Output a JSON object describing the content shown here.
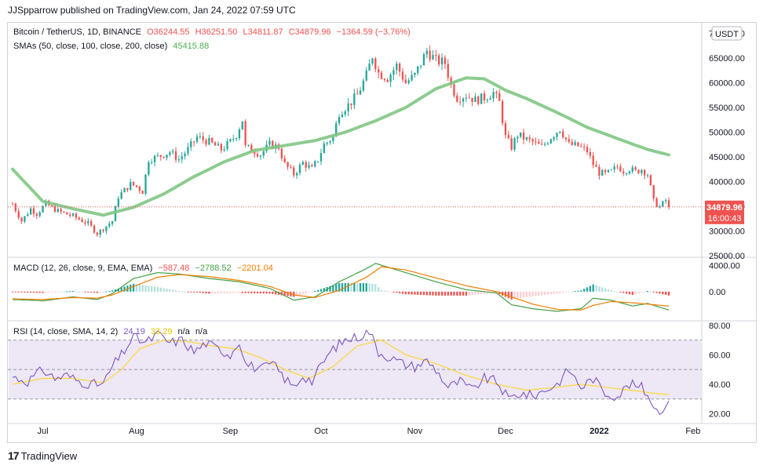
{
  "header": {
    "publish_info": "JJSpparrow published on TradingView.com, Jan 24, 2022 07:59 UTC"
  },
  "branding": {
    "logo_text": "TradingView",
    "logo_mark": "17"
  },
  "chart_data": [
    {
      "type": "candlestick",
      "title": "Bitcoin / TetherUS, 1D, BINANCE",
      "currency": "USDT",
      "ohlc_label": {
        "o": "O36244.55",
        "h": "H36251.50",
        "l": "L34811.87",
        "c": "C34879.96",
        "chg": "−1364.59 (−3.76%)"
      },
      "last_price_label": "34879.96",
      "countdown_label": "16:00:43",
      "ylim": [
        25000,
        72000
      ],
      "yticks": [
        25000,
        30000,
        35000,
        40000,
        45000,
        50000,
        55000,
        60000,
        65000,
        70000
      ],
      "ytick_labels": [
        "25000.00",
        "30000.00",
        "35000.00",
        "40000.00",
        "45000.00",
        "50000.00",
        "55000.00",
        "60000.00",
        "65000.00",
        "70000.00"
      ],
      "x_labels": [
        {
          "label": "Jul",
          "day": 10
        },
        {
          "label": "Aug",
          "day": 41
        },
        {
          "label": "Sep",
          "day": 72
        },
        {
          "label": "Oct",
          "day": 102
        },
        {
          "label": "Nov",
          "day": 133
        },
        {
          "label": "Dec",
          "day": 163
        },
        {
          "label": "2022",
          "day": 194
        },
        {
          "label": "Feb",
          "day": 225
        }
      ],
      "first_day": "2021-06-21",
      "last_day_index": 217,
      "anchors": [
        [
          0,
          35500
        ],
        [
          3,
          32000
        ],
        [
          6,
          34500
        ],
        [
          8,
          33500
        ],
        [
          11,
          35500
        ],
        [
          15,
          34000
        ],
        [
          20,
          33000
        ],
        [
          25,
          31500
        ],
        [
          28,
          29500
        ],
        [
          33,
          32000
        ],
        [
          35,
          37000
        ],
        [
          39,
          39500
        ],
        [
          41,
          39000
        ],
        [
          43,
          38000
        ],
        [
          45,
          44500
        ],
        [
          48,
          45000
        ],
        [
          52,
          46000
        ],
        [
          55,
          44500
        ],
        [
          58,
          46500
        ],
        [
          61,
          49000
        ],
        [
          65,
          48000
        ],
        [
          69,
          46500
        ],
        [
          72,
          48000
        ],
        [
          74,
          49500
        ],
        [
          76,
          52500
        ],
        [
          77,
          47000
        ],
        [
          79,
          46500
        ],
        [
          82,
          45500
        ],
        [
          85,
          47500
        ],
        [
          88,
          47000
        ],
        [
          90,
          43500
        ],
        [
          93,
          41500
        ],
        [
          96,
          43800
        ],
        [
          99,
          42500
        ],
        [
          101,
          44500
        ],
        [
          103,
          47500
        ],
        [
          106,
          49000
        ],
        [
          108,
          54000
        ],
        [
          111,
          55500
        ],
        [
          114,
          57500
        ],
        [
          117,
          61500
        ],
        [
          119,
          65500
        ],
        [
          121,
          62000
        ],
        [
          124,
          61000
        ],
        [
          127,
          63500
        ],
        [
          130,
          60000
        ],
        [
          133,
          61500
        ],
        [
          135,
          64000
        ],
        [
          137,
          66500
        ],
        [
          140,
          64500
        ],
        [
          143,
          64000
        ],
        [
          145,
          59500
        ],
        [
          147,
          57000
        ],
        [
          150,
          57500
        ],
        [
          153,
          56500
        ],
        [
          156,
          57000
        ],
        [
          159,
          58000
        ],
        [
          161,
          56000
        ],
        [
          163,
          49000
        ],
        [
          165,
          47000
        ],
        [
          167,
          49500
        ],
        [
          170,
          48500
        ],
        [
          172,
          48000
        ],
        [
          175,
          47000
        ],
        [
          178,
          49000
        ],
        [
          181,
          50700
        ],
        [
          184,
          47500
        ],
        [
          187,
          47200
        ],
        [
          190,
          46200
        ],
        [
          192,
          43500
        ],
        [
          194,
          41800
        ],
        [
          196,
          41500
        ],
        [
          198,
          42000
        ],
        [
          200,
          43100
        ],
        [
          202,
          42200
        ],
        [
          204,
          42600
        ],
        [
          206,
          42000
        ],
        [
          208,
          42500
        ],
        [
          210,
          41500
        ],
        [
          212,
          36000
        ],
        [
          214,
          34800
        ],
        [
          216,
          36250
        ],
        [
          217,
          34880
        ]
      ],
      "indicators": {
        "sma": {
          "label": "SMAs (50, close, 100, close, 200, close)",
          "value": "45415.88",
          "color": "#81c784",
          "anchors": [
            [
              0,
              42500
            ],
            [
              10,
              36000
            ],
            [
              20,
              34500
            ],
            [
              30,
              33200
            ],
            [
              40,
              34800
            ],
            [
              50,
              37500
            ],
            [
              60,
              41000
            ],
            [
              70,
              44000
            ],
            [
              80,
              46300
            ],
            [
              90,
              47300
            ],
            [
              100,
              48300
            ],
            [
              110,
              50000
            ],
            [
              120,
              52300
            ],
            [
              130,
              55000
            ],
            [
              140,
              58800
            ],
            [
              150,
              61000
            ],
            [
              156,
              60800
            ],
            [
              163,
              58500
            ],
            [
              170,
              56800
            ],
            [
              180,
              54000
            ],
            [
              190,
              51000
            ],
            [
              200,
              48700
            ],
            [
              210,
              46500
            ],
            [
              217,
              45400
            ]
          ]
        }
      },
      "colors": {
        "up": "#26a69a",
        "down": "#ef5350",
        "price_line": "#ef5350",
        "pane_border": "#d1d4dc"
      }
    },
    {
      "type": "macd",
      "label": "MACD (12, 26, close, 9, EMA, EMA)",
      "values": {
        "hist": "−587.48",
        "macd": "−2788.52",
        "signal": "−2201.04"
      },
      "ylim": [
        -4200,
        5000
      ],
      "yticks": [
        0,
        4000
      ],
      "ytick_labels": [
        "0.00",
        "4000.00"
      ],
      "macd_anchors": [
        [
          0,
          -1200
        ],
        [
          10,
          -1400
        ],
        [
          20,
          -800
        ],
        [
          28,
          -1200
        ],
        [
          33,
          -300
        ],
        [
          40,
          2000
        ],
        [
          48,
          2900
        ],
        [
          55,
          2700
        ],
        [
          65,
          2000
        ],
        [
          75,
          1500
        ],
        [
          85,
          500
        ],
        [
          93,
          -1300
        ],
        [
          100,
          -800
        ],
        [
          108,
          1500
        ],
        [
          117,
          3500
        ],
        [
          120,
          4300
        ],
        [
          130,
          2900
        ],
        [
          140,
          1500
        ],
        [
          150,
          300
        ],
        [
          160,
          -200
        ],
        [
          165,
          -2000
        ],
        [
          172,
          -2600
        ],
        [
          180,
          -3000
        ],
        [
          188,
          -2600
        ],
        [
          192,
          -1000
        ],
        [
          198,
          -1300
        ],
        [
          205,
          -2200
        ],
        [
          210,
          -1800
        ],
        [
          217,
          -2800
        ]
      ],
      "signal_anchors": [
        [
          0,
          -1100
        ],
        [
          10,
          -1200
        ],
        [
          20,
          -900
        ],
        [
          28,
          -1000
        ],
        [
          33,
          -500
        ],
        [
          40,
          800
        ],
        [
          48,
          2200
        ],
        [
          55,
          2600
        ],
        [
          65,
          2300
        ],
        [
          75,
          1700
        ],
        [
          85,
          800
        ],
        [
          93,
          -500
        ],
        [
          100,
          -900
        ],
        [
          108,
          200
        ],
        [
          117,
          2200
        ],
        [
          122,
          3800
        ],
        [
          130,
          3300
        ],
        [
          140,
          2100
        ],
        [
          150,
          900
        ],
        [
          160,
          0
        ],
        [
          165,
          -800
        ],
        [
          172,
          -1900
        ],
        [
          180,
          -2700
        ],
        [
          188,
          -2800
        ],
        [
          192,
          -2100
        ],
        [
          198,
          -1500
        ],
        [
          205,
          -1700
        ],
        [
          210,
          -1900
        ],
        [
          217,
          -2200
        ]
      ],
      "colors": {
        "macd": "#43a047",
        "signal": "#f57c00",
        "hist_up": "#26a69a",
        "hist_down": "#ef5350",
        "hist_up_light": "#b2dfdb",
        "hist_down_light": "#ffcdd2"
      }
    },
    {
      "type": "rsi",
      "label": "RSI (14, close, SMA, 14, 2)",
      "values": {
        "rsi": "24.19",
        "sma": "33.29",
        "extra1": "n/a",
        "extra2": "n/a"
      },
      "ylim": [
        15,
        82
      ],
      "yticks": [
        20,
        40,
        60,
        80
      ],
      "ytick_labels": [
        "20.00",
        "40.00",
        "60.00",
        "80.00"
      ],
      "bands": [
        30,
        50,
        70
      ],
      "rsi_anchors": [
        [
          0,
          45
        ],
        [
          5,
          42
        ],
        [
          10,
          50
        ],
        [
          14,
          44
        ],
        [
          18,
          46
        ],
        [
          22,
          42
        ],
        [
          26,
          40
        ],
        [
          30,
          40
        ],
        [
          33,
          52
        ],
        [
          36,
          60
        ],
        [
          40,
          72
        ],
        [
          44,
          68
        ],
        [
          48,
          74
        ],
        [
          52,
          68
        ],
        [
          56,
          70
        ],
        [
          60,
          62
        ],
        [
          64,
          68
        ],
        [
          68,
          64
        ],
        [
          72,
          60
        ],
        [
          75,
          70
        ],
        [
          77,
          54
        ],
        [
          82,
          50
        ],
        [
          86,
          54
        ],
        [
          90,
          44
        ],
        [
          93,
          38
        ],
        [
          96,
          46
        ],
        [
          99,
          42
        ],
        [
          103,
          56
        ],
        [
          106,
          64
        ],
        [
          110,
          70
        ],
        [
          114,
          72
        ],
        [
          118,
          76
        ],
        [
          121,
          62
        ],
        [
          125,
          58
        ],
        [
          129,
          54
        ],
        [
          133,
          52
        ],
        [
          137,
          56
        ],
        [
          140,
          50
        ],
        [
          144,
          38
        ],
        [
          148,
          42
        ],
        [
          152,
          36
        ],
        [
          156,
          44
        ],
        [
          160,
          42
        ],
        [
          164,
          30
        ],
        [
          168,
          34
        ],
        [
          172,
          32
        ],
        [
          176,
          36
        ],
        [
          180,
          40
        ],
        [
          184,
          50
        ],
        [
          188,
          38
        ],
        [
          192,
          44
        ],
        [
          196,
          34
        ],
        [
          200,
          32
        ],
        [
          204,
          40
        ],
        [
          208,
          38
        ],
        [
          211,
          30
        ],
        [
          213,
          22
        ],
        [
          215,
          24
        ],
        [
          217,
          26
        ]
      ],
      "sma_anchors": [
        [
          0,
          40
        ],
        [
          10,
          44
        ],
        [
          20,
          44
        ],
        [
          30,
          41
        ],
        [
          36,
          50
        ],
        [
          42,
          64
        ],
        [
          50,
          70
        ],
        [
          58,
          69
        ],
        [
          66,
          66
        ],
        [
          74,
          64
        ],
        [
          82,
          58
        ],
        [
          90,
          50
        ],
        [
          98,
          44
        ],
        [
          106,
          52
        ],
        [
          114,
          66
        ],
        [
          122,
          70
        ],
        [
          130,
          60
        ],
        [
          140,
          54
        ],
        [
          150,
          46
        ],
        [
          160,
          40
        ],
        [
          170,
          36
        ],
        [
          180,
          38
        ],
        [
          188,
          40
        ],
        [
          196,
          38
        ],
        [
          204,
          36
        ],
        [
          212,
          34
        ],
        [
          217,
          33
        ]
      ],
      "colors": {
        "rsi": "#7e57c2",
        "sma": "#fdd835",
        "band_fill": "#ede7f6",
        "band_line": "#9598a1"
      }
    }
  ]
}
